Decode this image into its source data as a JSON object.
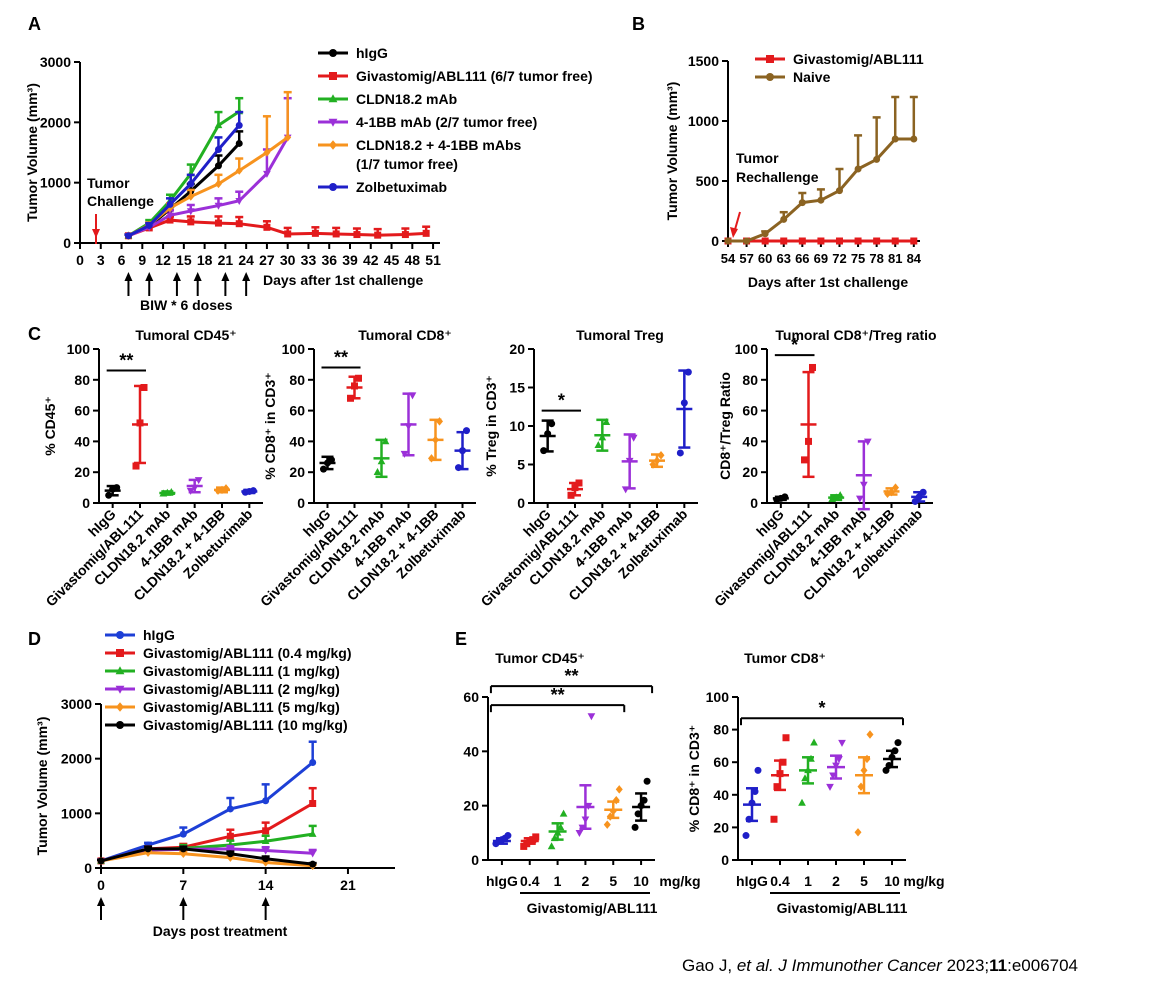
{
  "colors": {
    "black": "#000000",
    "red": "#e31a1c",
    "green": "#22b022",
    "purple": "#9b30d8",
    "orange": "#f7931e",
    "blue": "#1f1fc8",
    "blue2": "#1d3fd6",
    "brown": "#8b6322"
  },
  "citation": {
    "author": "Gao J, ",
    "etal": "et al.",
    "journal": " J Immunother Cancer",
    "year": " 2023;",
    "volume": "11",
    "article": ":e006704"
  },
  "chart_data": [
    {
      "id": "A",
      "panel_label": "A",
      "type": "line",
      "ylabel": "Tumor Volume (mm³)",
      "xlabel": "Days after 1st challenge",
      "ylim": [
        0,
        3000
      ],
      "yticks": [
        0,
        1000,
        2000,
        3000
      ],
      "xticks": [
        0,
        3,
        6,
        9,
        12,
        15,
        18,
        21,
        24,
        27,
        30,
        33,
        36,
        39,
        42,
        45,
        48,
        51
      ],
      "xlim": [
        0,
        52
      ],
      "annotations": {
        "challenge": [
          "Tumor",
          "Challenge"
        ],
        "dosing": "BIW * 6 doses",
        "dose_days": [
          7,
          10,
          14,
          17,
          21,
          24
        ]
      },
      "series": [
        {
          "name": "hIgG",
          "color": "black",
          "marker": "circle",
          "x": [
            7,
            10,
            13,
            16,
            20,
            23
          ],
          "y": [
            120,
            280,
            560,
            860,
            1280,
            1650
          ],
          "err": [
            20,
            40,
            80,
            120,
            170,
            200
          ]
        },
        {
          "name": "Givastomig/ABL111 (6/7 tumor free)",
          "color": "red",
          "marker": "square",
          "x": [
            7,
            10,
            13,
            16,
            20,
            23,
            27,
            30,
            34,
            37,
            40,
            43,
            47,
            50
          ],
          "y": [
            120,
            250,
            380,
            350,
            330,
            320,
            260,
            150,
            160,
            150,
            140,
            130,
            140,
            160
          ],
          "err": [
            20,
            30,
            60,
            90,
            110,
            110,
            100,
            100,
            100,
            100,
            100,
            100,
            100,
            110
          ]
        },
        {
          "name": "CLDN18.2 mAb",
          "color": "green",
          "marker": "triangle",
          "x": [
            7,
            10,
            13,
            16,
            20,
            23
          ],
          "y": [
            120,
            330,
            700,
            1150,
            1950,
            2180
          ],
          "err": [
            20,
            50,
            100,
            150,
            220,
            220
          ]
        },
        {
          "name": "4-1BB mAb (2/7 tumor free)",
          "color": "purple",
          "marker": "tri-down",
          "x": [
            7,
            10,
            13,
            16,
            20,
            23,
            27,
            30
          ],
          "y": [
            120,
            260,
            460,
            530,
            620,
            700,
            1150,
            1750
          ],
          "err": [
            20,
            40,
            80,
            100,
            120,
            150,
            400,
            650
          ]
        },
        {
          "name": "CLDN18.2 + 4-1BB mAbs",
          "name2": "(1/7 tumor free)",
          "color": "orange",
          "marker": "diamond",
          "x": [
            7,
            10,
            13,
            16,
            20,
            23,
            27,
            30
          ],
          "y": [
            120,
            300,
            580,
            770,
            980,
            1200,
            1500,
            1750
          ],
          "err": [
            20,
            40,
            80,
            110,
            150,
            200,
            600,
            750
          ]
        },
        {
          "name": "Zolbetuximab",
          "color": "blue",
          "marker": "circle",
          "x": [
            7,
            10,
            13,
            16,
            20,
            23
          ],
          "y": [
            120,
            290,
            640,
            980,
            1550,
            1950
          ],
          "err": [
            20,
            40,
            100,
            150,
            200,
            220
          ]
        }
      ]
    },
    {
      "id": "B",
      "panel_label": "B",
      "type": "line",
      "ylabel": "Tumor Volume (mm³)",
      "xlabel": "Days after 1st challenge",
      "ylim": [
        0,
        1500
      ],
      "yticks": [
        0,
        500,
        1000,
        1500
      ],
      "xticks": [
        54,
        57,
        60,
        63,
        66,
        69,
        72,
        75,
        78,
        81,
        84
      ],
      "xlim": [
        54,
        85
      ],
      "annotations": {
        "rechallenge": [
          "Tumor",
          "Rechallenge"
        ]
      },
      "series": [
        {
          "name": "Givastomig/ABL111",
          "color": "red",
          "marker": "square",
          "x": [
            54,
            57,
            60,
            63,
            66,
            69,
            72,
            75,
            78,
            81,
            84
          ],
          "y": [
            0,
            0,
            0,
            0,
            0,
            0,
            0,
            0,
            0,
            0,
            0
          ],
          "err": [
            0,
            0,
            0,
            0,
            0,
            0,
            0,
            0,
            0,
            0,
            0
          ]
        },
        {
          "name": "Naive",
          "color": "brown",
          "marker": "circle",
          "x": [
            54,
            57,
            60,
            63,
            66,
            69,
            72,
            75,
            78,
            81,
            84
          ],
          "y": [
            0,
            0,
            60,
            180,
            320,
            340,
            420,
            600,
            680,
            850,
            850
          ],
          "err": [
            0,
            0,
            20,
            60,
            80,
            90,
            180,
            280,
            350,
            350,
            350
          ]
        }
      ]
    },
    {
      "id": "C1",
      "panel_label": "C",
      "type": "scatter",
      "title": "Tumoral CD45⁺",
      "ylabel": "% CD45⁺",
      "ylim": [
        0,
        100
      ],
      "yticks": [
        0,
        20,
        40,
        60,
        80,
        100
      ],
      "categories": [
        "hIgG",
        "Givastomig/ABL111",
        "CLDN18.2 mAb",
        "4-1BB mAb",
        "CLDN18.2 + 4-1BB",
        "Zolbetuximab"
      ],
      "colors": [
        "black",
        "red",
        "green",
        "purple",
        "orange",
        "blue"
      ],
      "markers": [
        "circle",
        "square",
        "triangle",
        "tri-down",
        "diamond",
        "circle"
      ],
      "means": [
        8,
        51,
        6.5,
        11,
        8.5,
        7.5
      ],
      "errs": [
        3,
        25,
        1,
        4,
        1.5,
        1
      ],
      "points": [
        [
          5,
          9,
          10
        ],
        [
          24,
          52,
          75
        ],
        [
          6,
          6.5,
          7
        ],
        [
          8,
          10,
          15
        ],
        [
          8,
          8.5,
          9.5
        ],
        [
          7,
          7.5,
          8
        ]
      ],
      "sig": [
        {
          "from": 0,
          "to": 1,
          "label": "**",
          "y": 86
        }
      ]
    },
    {
      "id": "C2",
      "type": "scatter",
      "title": "Tumoral CD8⁺",
      "ylabel": "% CD8⁺ in CD3⁺",
      "ylim": [
        0,
        100
      ],
      "yticks": [
        0,
        20,
        40,
        60,
        80,
        100
      ],
      "categories": [
        "hIgG",
        "Givastomig/ABL111",
        "CLDN18.2 mAb",
        "4-1BB mAb",
        "CLDN18.2 + 4-1BB",
        "Zolbetuximab"
      ],
      "colors": [
        "black",
        "red",
        "green",
        "purple",
        "orange",
        "blue"
      ],
      "markers": [
        "circle",
        "square",
        "triangle",
        "tri-down",
        "diamond",
        "circle"
      ],
      "means": [
        26,
        75,
        29,
        51,
        41,
        34
      ],
      "errs": [
        4,
        7,
        12,
        20,
        13,
        12
      ],
      "points": [
        [
          22,
          26,
          28
        ],
        [
          68,
          76,
          81
        ],
        [
          20,
          27,
          40
        ],
        [
          32,
          50,
          70
        ],
        [
          29,
          41,
          53
        ],
        [
          23,
          34,
          47
        ]
      ],
      "sig": [
        {
          "from": 0,
          "to": 1,
          "label": "**",
          "y": 88
        }
      ]
    },
    {
      "id": "C3",
      "type": "scatter",
      "title": "Tumoral Treg",
      "ylabel": "% Treg in CD3⁺",
      "ylim": [
        0,
        20
      ],
      "yticks": [
        0,
        5,
        10,
        15,
        20
      ],
      "categories": [
        "hIgG",
        "Givastomig/ABL111",
        "CLDN18.2 mAb",
        "4-1BB mAb",
        "CLDN18.2 + 4-1BB",
        "Zolbetuximab"
      ],
      "colors": [
        "black",
        "red",
        "green",
        "purple",
        "orange",
        "blue"
      ],
      "markers": [
        "circle",
        "square",
        "triangle",
        "tri-down",
        "diamond",
        "circle"
      ],
      "means": [
        8.7,
        1.8,
        8.8,
        5.4,
        5.5,
        12.2
      ],
      "errs": [
        2,
        0.8,
        2,
        3.5,
        0.8,
        5
      ],
      "points": [
        [
          6.8,
          9,
          10.3
        ],
        [
          1,
          2,
          2.6
        ],
        [
          7.5,
          8.5,
          10.5
        ],
        [
          1.8,
          5.5,
          8.5
        ],
        [
          5,
          5.5,
          6.2
        ],
        [
          6.5,
          13,
          17
        ]
      ],
      "sig": [
        {
          "from": 0,
          "to": 1,
          "label": "*",
          "y": 12
        }
      ]
    },
    {
      "id": "C4",
      "type": "scatter",
      "title": "Tumoral CD8⁺/Treg ratio",
      "ylabel": "CD8⁺/Treg Ratio",
      "ylim": [
        0,
        100
      ],
      "yticks": [
        0,
        20,
        40,
        60,
        80,
        100
      ],
      "categories": [
        "hIgG",
        "Givastomig/ABL111",
        "CLDN18.2 mAb",
        "4-1BB mAb",
        "CLDN18.2 + 4-1BB",
        "Zolbetuximab"
      ],
      "colors": [
        "black",
        "red",
        "green",
        "purple",
        "orange",
        "blue"
      ],
      "markers": [
        "circle",
        "square",
        "triangle",
        "tri-down",
        "diamond",
        "circle"
      ],
      "means": [
        3,
        51,
        3.5,
        18,
        7.5,
        4
      ],
      "errs": [
        1,
        34,
        1.5,
        22,
        2,
        3
      ],
      "points": [
        [
          2,
          3,
          4
        ],
        [
          28,
          40,
          88
        ],
        [
          2.5,
          3.5,
          5
        ],
        [
          3,
          12,
          40
        ],
        [
          6,
          7,
          10
        ],
        [
          1,
          4,
          7
        ]
      ],
      "sig": [
        {
          "from": 0,
          "to": 1,
          "label": "*",
          "y": 96
        }
      ]
    },
    {
      "id": "D",
      "panel_label": "D",
      "type": "line",
      "ylabel": "Tumor Volume (mm³)",
      "xlabel": "Days post treatment",
      "ylim": [
        0,
        3000
      ],
      "yticks": [
        0,
        1000,
        2000,
        3000
      ],
      "xticks": [
        0,
        7,
        14,
        21
      ],
      "xlim": [
        0,
        25
      ],
      "dose_days": [
        0,
        7,
        14
      ],
      "series": [
        {
          "name": "hIgG",
          "color": "blue2",
          "marker": "circle",
          "x": [
            0,
            4,
            7,
            11,
            14,
            18
          ],
          "y": [
            130,
            420,
            620,
            1080,
            1230,
            1930
          ],
          "err": [
            20,
            40,
            120,
            200,
            300,
            380
          ]
        },
        {
          "name": "Givastomig/ABL111 (0.4 mg/kg)",
          "color": "red",
          "marker": "square",
          "x": [
            0,
            4,
            7,
            11,
            14,
            18
          ],
          "y": [
            130,
            350,
            380,
            580,
            680,
            1180
          ],
          "err": [
            20,
            40,
            60,
            120,
            150,
            280
          ]
        },
        {
          "name": "Givastomig/ABL111 (1 mg/kg)",
          "color": "green",
          "marker": "triangle",
          "x": [
            0,
            4,
            7,
            11,
            14,
            18
          ],
          "y": [
            130,
            330,
            360,
            420,
            490,
            620
          ],
          "err": [
            20,
            40,
            60,
            80,
            100,
            150
          ]
        },
        {
          "name": "Givastomig/ABL111 (2 mg/kg)",
          "color": "purple",
          "marker": "tri-down",
          "x": [
            0,
            4,
            7,
            11,
            14,
            18
          ],
          "y": [
            130,
            330,
            340,
            350,
            320,
            270
          ],
          "err": [
            20,
            40,
            50,
            50,
            60,
            60
          ]
        },
        {
          "name": "Givastomig/ABL111 (5 mg/kg)",
          "color": "orange",
          "marker": "diamond",
          "x": [
            0,
            4,
            7,
            11,
            14,
            18
          ],
          "y": [
            130,
            280,
            260,
            190,
            100,
            40
          ],
          "err": [
            20,
            30,
            40,
            40,
            30,
            20
          ]
        },
        {
          "name": "Givastomig/ABL111 (10 mg/kg)",
          "color": "black",
          "marker": "circle",
          "x": [
            0,
            4,
            7,
            11,
            14,
            18
          ],
          "y": [
            130,
            350,
            350,
            260,
            170,
            70
          ],
          "err": [
            20,
            40,
            40,
            40,
            40,
            20
          ]
        }
      ]
    },
    {
      "id": "E1",
      "panel_label": "E",
      "type": "scatter",
      "title": "Tumor CD45⁺",
      "ylim": [
        0,
        60
      ],
      "yticks": [
        0,
        20,
        40,
        60
      ],
      "categories": [
        "hIgG",
        "0.4",
        "1",
        "2",
        "5",
        "10"
      ],
      "unit": "mg/kg",
      "group_label": "Givastomig/ABL111",
      "colors": [
        "blue",
        "red",
        "green",
        "purple",
        "orange",
        "black"
      ],
      "markers": [
        "circle",
        "square",
        "triangle",
        "tri-down",
        "diamond",
        "circle"
      ],
      "means": [
        7,
        7,
        10.5,
        19.5,
        18.5,
        19.5
      ],
      "errs": [
        1,
        1,
        3,
        8,
        3,
        5
      ],
      "points": [
        [
          6,
          7,
          7.5,
          8,
          9
        ],
        [
          5,
          6,
          7,
          7.5,
          8.5
        ],
        [
          5,
          8,
          10,
          12,
          17
        ],
        [
          10,
          12,
          15,
          20,
          53
        ],
        [
          13,
          16,
          18,
          22,
          26
        ],
        [
          12,
          17,
          20,
          22,
          29
        ]
      ],
      "sig": [
        {
          "from": 0,
          "to": 5,
          "label": "**",
          "y": 64
        },
        {
          "from": 0,
          "to": 4,
          "label": "**",
          "y": 57
        }
      ]
    },
    {
      "id": "E2",
      "type": "scatter",
      "title": "Tumor CD8⁺",
      "ylabel": "% CD8⁺ in CD3⁺",
      "ylim": [
        0,
        100
      ],
      "yticks": [
        0,
        20,
        40,
        60,
        80,
        100
      ],
      "categories": [
        "hIgG",
        "0.4",
        "1",
        "2",
        "5",
        "10"
      ],
      "unit": "mg/kg",
      "group_label": "Givastomig/ABL111",
      "colors": [
        "blue",
        "red",
        "green",
        "purple",
        "orange",
        "black"
      ],
      "markers": [
        "circle",
        "square",
        "triangle",
        "tri-down",
        "diamond",
        "circle"
      ],
      "means": [
        34,
        52,
        55,
        57,
        52,
        62
      ],
      "errs": [
        10,
        9,
        8,
        7,
        11,
        5
      ],
      "points": [
        [
          15,
          25,
          35,
          42,
          55
        ],
        [
          25,
          45,
          53,
          60,
          75
        ],
        [
          35,
          50,
          55,
          62,
          72
        ],
        [
          45,
          52,
          58,
          62,
          72
        ],
        [
          17,
          45,
          55,
          62,
          77
        ],
        [
          55,
          58,
          63,
          67,
          72
        ]
      ],
      "sig": [
        {
          "from": 0,
          "to": 5,
          "label": "*",
          "y": 87
        }
      ]
    }
  ]
}
